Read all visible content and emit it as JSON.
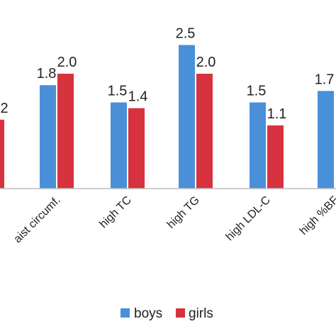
{
  "chart_data": {
    "type": "bar",
    "categories": [
      "waist circumf.",
      "high TC",
      "high TG",
      "high LDL-C",
      "high %BF"
    ],
    "series": [
      {
        "name": "boys",
        "color": "#4a90d9",
        "values": [
          1.8,
          1.5,
          2.5,
          1.5,
          1.7
        ]
      },
      {
        "name": "girls",
        "color": "#d7323f",
        "values": [
          2.0,
          1.4,
          2.0,
          1.1,
          null
        ]
      }
    ],
    "value_labels": {
      "boys": [
        "1.8",
        "1.5",
        "2.5",
        "1.5",
        "1.7"
      ],
      "girls": [
        "2.0",
        "1.4",
        "2.0",
        "1.1",
        ""
      ]
    },
    "partial_left": {
      "girls_value": 1.2,
      "girls_label": "2"
    },
    "tick_labels": [
      "aist circumf.",
      "high TC",
      "high TG",
      "high LDL-C",
      "high %BF"
    ],
    "ylim": [
      0,
      3
    ],
    "grid": false,
    "legend_position": "bottom",
    "axis_color": "#bbbbbb"
  }
}
